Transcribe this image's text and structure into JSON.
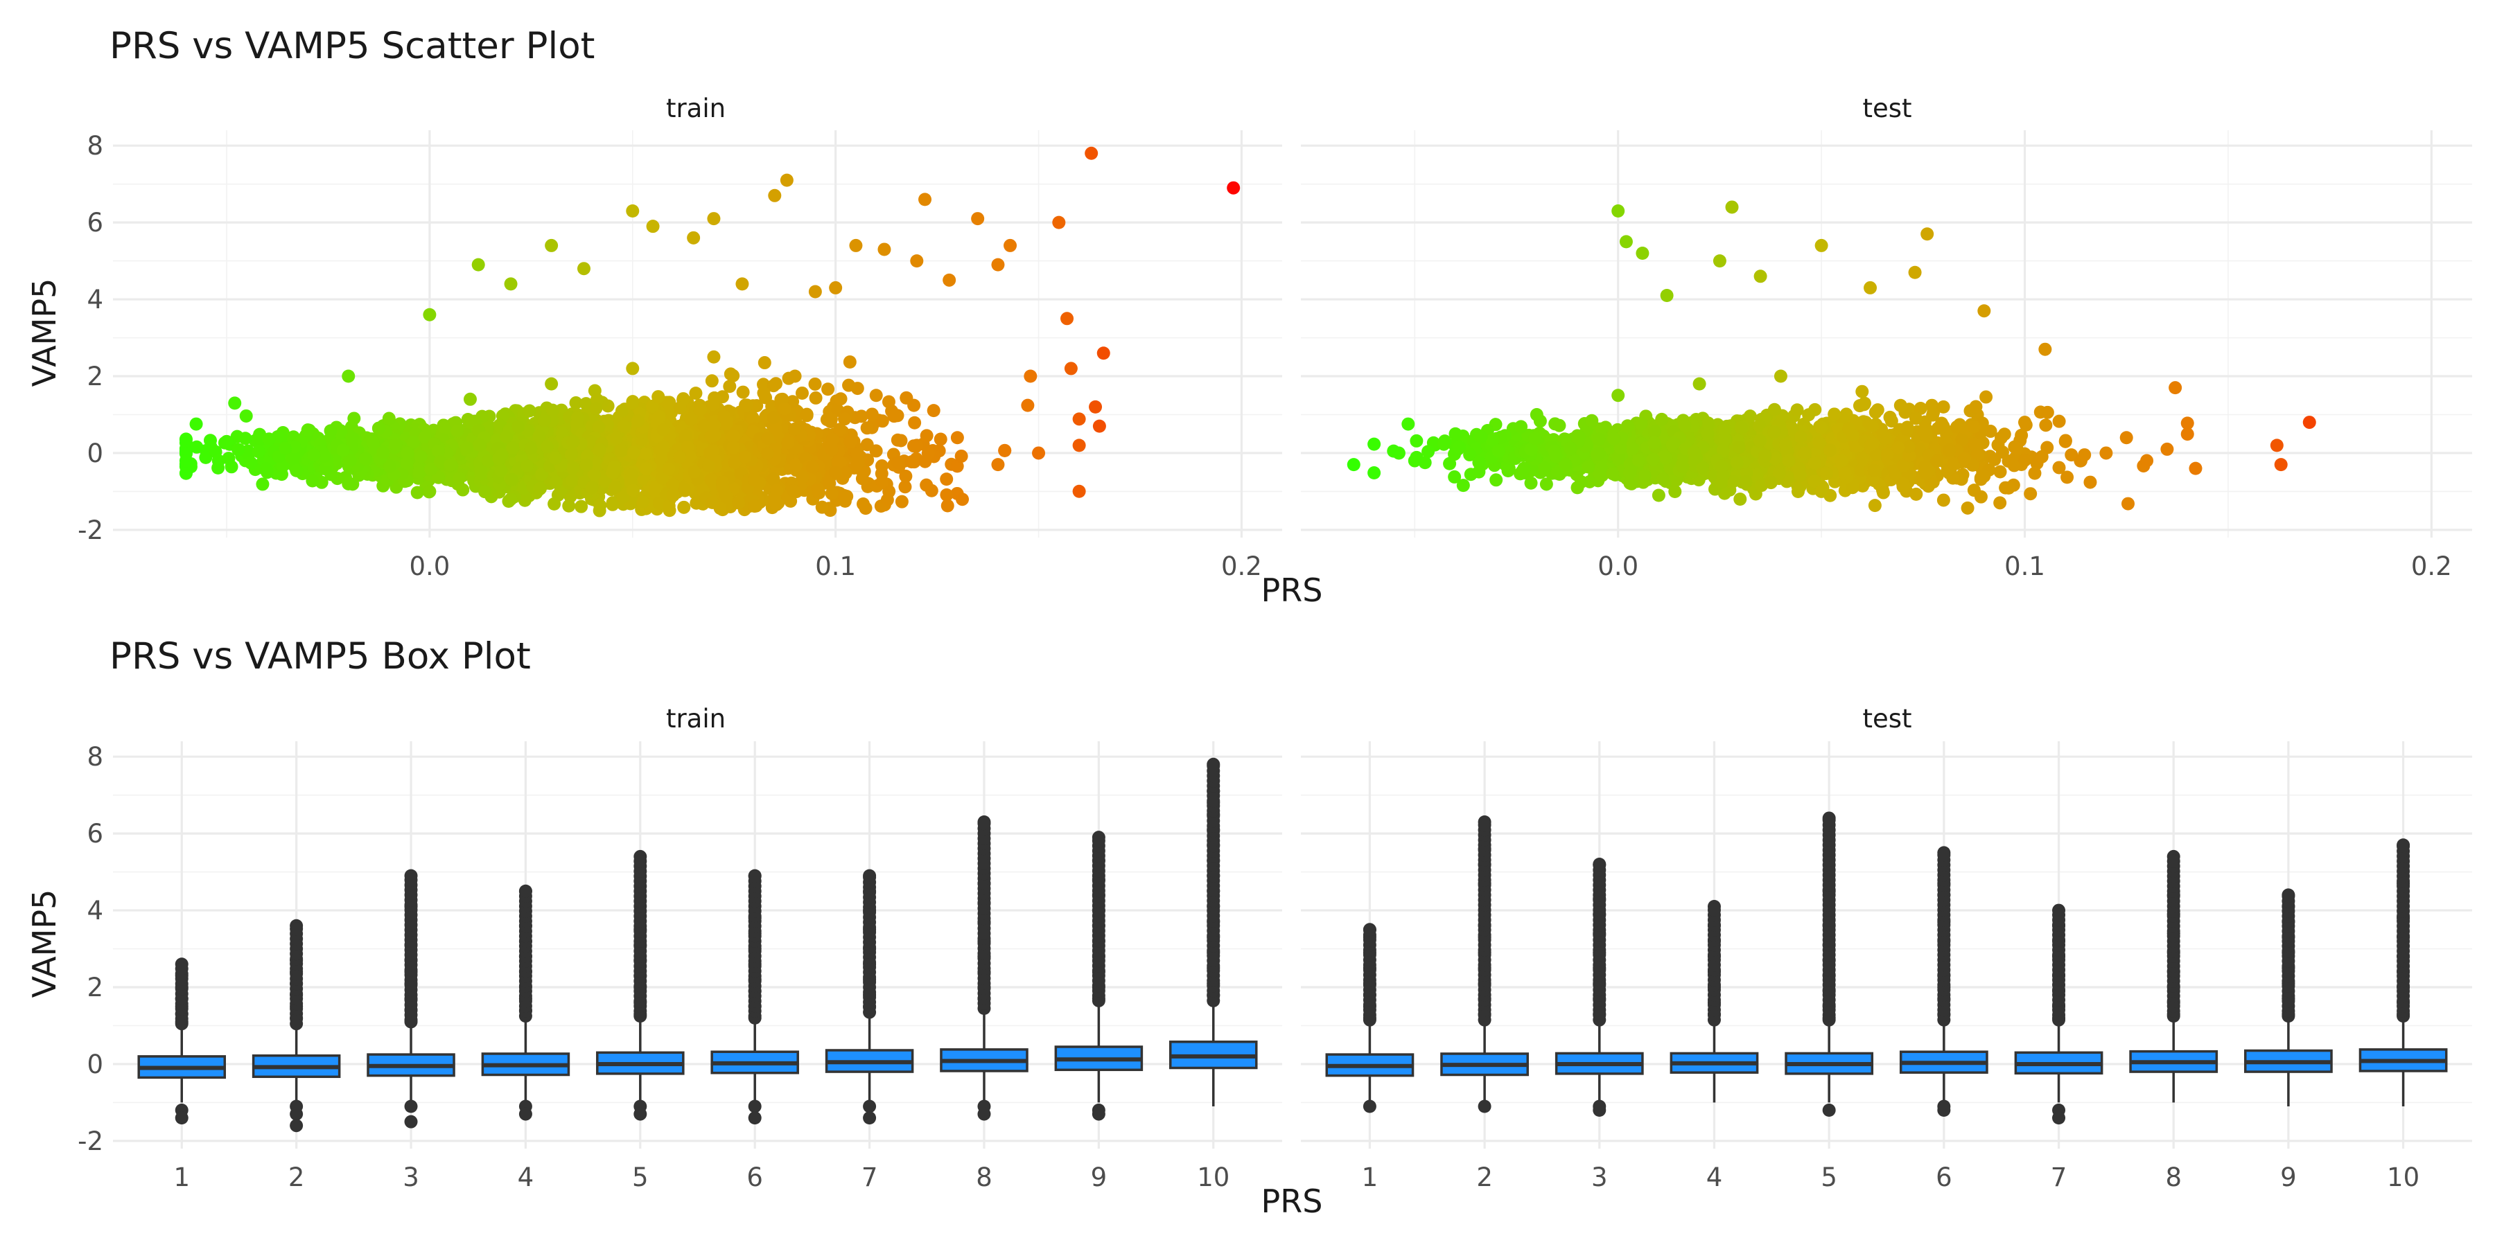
{
  "colors": {
    "scatter_low": "#33ff00",
    "scatter_mid": "#c8b400",
    "scatter_high": "#ff0000",
    "box_fill": "#1e90ff",
    "box_line": "#333333",
    "outlier": "#333333"
  },
  "scatter_plot": {
    "title": "PRS vs VAMP5 Scatter Plot",
    "xlabel": "PRS",
    "ylabel": "VAMP5",
    "x_ticks": [
      "0.0",
      "0.1",
      "0.2"
    ],
    "y_ticks": [
      "-2",
      "0",
      "2",
      "4",
      "6",
      "8"
    ],
    "panels": [
      "train",
      "test"
    ]
  },
  "box_plot": {
    "title": "PRS vs VAMP5 Box Plot",
    "xlabel": "PRS",
    "ylabel": "VAMP5",
    "x_ticks": [
      "1",
      "2",
      "3",
      "4",
      "5",
      "6",
      "7",
      "8",
      "9",
      "10"
    ],
    "y_ticks": [
      "-2",
      "0",
      "2",
      "4",
      "6",
      "8"
    ],
    "panels": [
      "train",
      "test"
    ]
  },
  "chart_data": [
    {
      "type": "scatter",
      "title": "PRS vs VAMP5 Scatter Plot",
      "xlabel": "PRS",
      "ylabel": "VAMP5",
      "xlim": [
        -0.078,
        0.21
      ],
      "ylim": [
        -2.2,
        8.4
      ],
      "x_ticks": [
        0.0,
        0.1,
        0.2
      ],
      "y_ticks": [
        -2,
        0,
        2,
        4,
        6,
        8
      ],
      "grid": true,
      "facets": [
        "train",
        "test"
      ],
      "color_scale": {
        "variable": "PRS",
        "low": "#33ff00",
        "high": "#ff0000"
      },
      "series": [
        {
          "name": "train",
          "x": [
            -0.06,
            -0.05,
            -0.04,
            -0.03,
            -0.02,
            -0.01,
            0.0,
            0.01,
            0.02,
            0.03,
            0.04,
            0.05,
            0.06,
            0.07,
            0.08,
            0.09,
            0.1,
            0.11,
            0.12,
            0.13,
            0.14,
            0.15,
            0.16,
            -0.048,
            -0.02,
            0.0,
            0.012,
            0.02,
            0.03,
            0.038,
            0.05,
            0.055,
            0.065,
            0.07,
            0.077,
            0.085,
            0.088,
            0.095,
            0.1,
            0.105,
            0.112,
            0.12,
            0.122,
            0.128,
            0.135,
            0.14,
            0.143,
            0.148,
            0.155,
            0.157,
            0.158,
            0.163,
            0.164,
            0.166,
            0.165,
            0.198
          ],
          "y": [
            -0.2,
            0.3,
            -0.5,
            0.6,
            -0.8,
            0.9,
            -1.0,
            1.4,
            -1.2,
            1.8,
            -0.9,
            2.2,
            -1.1,
            2.5,
            -0.7,
            2.0,
            -0.5,
            1.5,
            0.2,
            0.4,
            -0.3,
            0.0,
            0.2,
            1.3,
            2.0,
            3.6,
            4.9,
            4.4,
            5.4,
            4.8,
            6.3,
            5.9,
            5.6,
            6.1,
            4.4,
            6.7,
            7.1,
            4.2,
            4.3,
            5.4,
            5.3,
            5.0,
            6.6,
            4.5,
            6.1,
            4.9,
            5.4,
            2.0,
            6.0,
            3.5,
            2.2,
            7.8,
            1.2,
            2.6,
            0.7,
            6.9
          ]
        },
        {
          "name": "test",
          "x": [
            -0.065,
            -0.05,
            -0.04,
            -0.03,
            -0.02,
            -0.01,
            0.0,
            0.01,
            0.02,
            0.03,
            0.04,
            0.05,
            0.06,
            0.07,
            0.08,
            0.09,
            0.1,
            0.11,
            0.12,
            0.125,
            0.13,
            0.135,
            0.142,
            0.162,
            0.163,
            0.17,
            0.0,
            0.002,
            0.006,
            0.012,
            0.025,
            0.028,
            0.035,
            0.05,
            0.062,
            0.073,
            0.076,
            0.09,
            0.105,
            0.137
          ],
          "y": [
            -0.3,
            -0.2,
            0.5,
            -0.7,
            1.0,
            -0.9,
            1.5,
            -1.1,
            1.8,
            -1.2,
            2.0,
            -1.0,
            1.6,
            -0.8,
            1.2,
            -0.6,
            0.8,
            0.3,
            0.0,
            0.4,
            -0.2,
            0.1,
            -0.4,
            0.2,
            -0.3,
            0.8,
            6.3,
            5.5,
            5.2,
            4.1,
            5.0,
            6.4,
            4.6,
            5.4,
            4.3,
            4.7,
            5.7,
            3.7,
            2.7,
            1.7
          ]
        }
      ]
    },
    {
      "type": "box",
      "title": "PRS vs VAMP5 Box Plot",
      "xlabel": "PRS",
      "ylabel": "VAMP5",
      "categories": [
        "1",
        "2",
        "3",
        "4",
        "5",
        "6",
        "7",
        "8",
        "9",
        "10"
      ],
      "ylim": [
        -2.2,
        8.4
      ],
      "y_ticks": [
        -2,
        0,
        2,
        4,
        6,
        8
      ],
      "grid": true,
      "facets": [
        {
          "name": "train",
          "boxes": [
            {
              "q1": -0.35,
              "median": -0.1,
              "q3": 0.2,
              "lower": -1.0,
              "upper": 0.9,
              "outliers": [
                2.6,
                2.3,
                2.0,
                1.7,
                1.5,
                1.3,
                1.1,
                -1.2,
                -1.4
              ]
            },
            {
              "q1": -0.33,
              "median": -0.08,
              "q3": 0.22,
              "lower": -1.0,
              "upper": 0.9,
              "outliers": [
                3.6,
                2.7,
                2.4,
                2.1,
                1.8,
                1.5,
                1.2,
                -1.1,
                -1.3,
                -1.6
              ]
            },
            {
              "q1": -0.3,
              "median": -0.05,
              "q3": 0.25,
              "lower": -1.0,
              "upper": 1.0,
              "outliers": [
                4.9,
                4.1,
                3.1,
                2.7,
                2.4,
                2.1,
                1.7,
                1.4,
                1.1,
                -1.1,
                -1.5
              ]
            },
            {
              "q1": -0.28,
              "median": -0.03,
              "q3": 0.27,
              "lower": -1.0,
              "upper": 1.1,
              "outliers": [
                4.5,
                3.6,
                3.2,
                2.8,
                2.4,
                2.0,
                1.7,
                1.4,
                -1.1,
                -1.3
              ]
            },
            {
              "q1": -0.25,
              "median": 0.0,
              "q3": 0.3,
              "lower": -1.0,
              "upper": 1.1,
              "outliers": [
                5.4,
                3.5,
                3.1,
                2.7,
                2.3,
                2.0,
                1.6,
                1.3,
                -1.1,
                -1.3
              ]
            },
            {
              "q1": -0.23,
              "median": 0.02,
              "q3": 0.32,
              "lower": -1.0,
              "upper": 1.1,
              "outliers": [
                4.9,
                3.8,
                3.4,
                3.0,
                2.6,
                2.2,
                1.9,
                1.5,
                1.2,
                -1.1,
                -1.4
              ]
            },
            {
              "q1": -0.2,
              "median": 0.05,
              "q3": 0.36,
              "lower": -1.0,
              "upper": 1.2,
              "outliers": [
                4.9,
                4.5,
                4.0,
                3.5,
                3.0,
                2.6,
                2.2,
                1.8,
                1.5,
                -1.1,
                -1.4
              ]
            },
            {
              "q1": -0.18,
              "median": 0.08,
              "q3": 0.38,
              "lower": -1.0,
              "upper": 1.3,
              "outliers": [
                6.3,
                4.7,
                4.2,
                3.7,
                3.2,
                2.8,
                2.4,
                2.0,
                1.7,
                -1.1,
                -1.3
              ]
            },
            {
              "q1": -0.15,
              "median": 0.12,
              "q3": 0.45,
              "lower": -1.0,
              "upper": 1.5,
              "outliers": [
                5.9,
                5.3,
                4.8,
                4.4,
                4.0,
                3.6,
                3.2,
                2.8,
                2.4,
                2.0,
                1.7,
                -1.2,
                -1.3
              ]
            },
            {
              "q1": -0.1,
              "median": 0.2,
              "q3": 0.58,
              "lower": -1.1,
              "upper": 1.5,
              "outliers": [
                7.8,
                7.1,
                6.8,
                6.5,
                6.1,
                5.7,
                5.3,
                4.9,
                4.5,
                4.1,
                3.7,
                3.3,
                2.9,
                2.5,
                2.1,
                1.8
              ]
            }
          ]
        },
        {
          "name": "test",
          "boxes": [
            {
              "q1": -0.3,
              "median": -0.05,
              "q3": 0.25,
              "lower": -1.0,
              "upper": 1.0,
              "outliers": [
                3.5,
                3.3,
                2.9,
                2.5,
                2.1,
                1.8,
                1.5,
                1.2,
                -1.1
              ]
            },
            {
              "q1": -0.28,
              "median": -0.02,
              "q3": 0.27,
              "lower": -1.0,
              "upper": 1.0,
              "outliers": [
                6.3,
                5.6,
                5.2,
                4.7,
                3.6,
                3.3,
                2.9,
                2.5,
                2.1,
                1.7,
                1.3,
                -1.1
              ]
            },
            {
              "q1": -0.25,
              "median": 0.0,
              "q3": 0.28,
              "lower": -1.0,
              "upper": 1.0,
              "outliers": [
                5.2,
                4.3,
                3.9,
                3.4,
                2.9,
                2.5,
                2.1,
                1.7,
                1.3,
                -1.1,
                -1.2
              ]
            },
            {
              "q1": -0.22,
              "median": 0.02,
              "q3": 0.28,
              "lower": -1.0,
              "upper": 1.0,
              "outliers": [
                4.1,
                3.6,
                3.2,
                2.8,
                2.4,
                2.0,
                1.6,
                1.3
              ]
            },
            {
              "q1": -0.25,
              "median": 0.0,
              "q3": 0.28,
              "lower": -1.0,
              "upper": 1.0,
              "outliers": [
                6.4,
                4.5,
                3.6,
                3.1,
                2.7,
                2.3,
                1.9,
                1.5,
                1.2,
                -1.2
              ]
            },
            {
              "q1": -0.22,
              "median": 0.03,
              "q3": 0.32,
              "lower": -1.0,
              "upper": 1.0,
              "outliers": [
                5.5,
                4.7,
                4.4,
                3.7,
                3.2,
                2.3,
                2.0,
                1.7,
                1.3,
                -1.1,
                -1.2
              ]
            },
            {
              "q1": -0.24,
              "median": 0.0,
              "q3": 0.3,
              "lower": -1.0,
              "upper": 1.0,
              "outliers": [
                4.0,
                3.6,
                3.2,
                2.8,
                2.3,
                1.9,
                1.5,
                1.2,
                -1.2,
                -1.4
              ]
            },
            {
              "q1": -0.2,
              "median": 0.05,
              "q3": 0.33,
              "lower": -1.0,
              "upper": 1.1,
              "outliers": [
                5.4,
                4.4,
                3.9,
                3.4,
                2.9,
                2.4,
                2.0,
                1.6,
                1.3
              ]
            },
            {
              "q1": -0.2,
              "median": 0.05,
              "q3": 0.35,
              "lower": -1.1,
              "upper": 1.1,
              "outliers": [
                4.4,
                4.1,
                3.7,
                3.3,
                2.9,
                2.5,
                2.1,
                1.7,
                1.3
              ]
            },
            {
              "q1": -0.18,
              "median": 0.08,
              "q3": 0.38,
              "lower": -1.1,
              "upper": 1.1,
              "outliers": [
                5.7,
                4.7,
                3.8,
                3.3,
                2.8,
                2.4,
                2.0,
                1.6,
                1.3
              ]
            }
          ]
        }
      ]
    }
  ]
}
